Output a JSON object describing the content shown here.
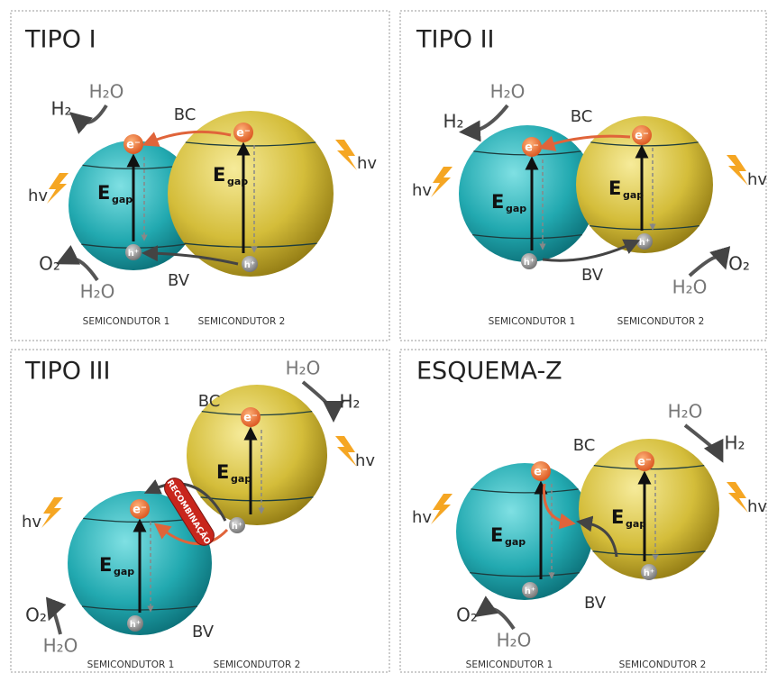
{
  "panels": [
    {
      "title": "TIPO I",
      "conduction_band": "BC",
      "valence_band": "BV",
      "reduction": {
        "reactant": "H₂O",
        "product": "H₂"
      },
      "oxidation": {
        "reactant": "H₂O",
        "product": "O₂"
      },
      "semiconductors": [
        {
          "name": "SEMICONDUTOR 1",
          "light": "hv",
          "electron": "e⁻",
          "hole": "h⁺",
          "gap": "E",
          "gap_subscript": "gap"
        },
        {
          "name": "SEMICONDUTOR 2",
          "light": "hv",
          "electron": "e⁻",
          "hole": "h⁺",
          "gap": "E",
          "gap_subscript": "gap"
        }
      ]
    },
    {
      "title": "TIPO II",
      "conduction_band": "BC",
      "valence_band": "BV",
      "reduction": {
        "reactant": "H₂O",
        "product": "H₂"
      },
      "oxidation": {
        "reactant": "H₂O",
        "product": "O₂"
      },
      "semiconductors": [
        {
          "name": "SEMICONDUTOR 1",
          "light": "hv",
          "electron": "e⁻",
          "hole": "h⁺",
          "gap": "E",
          "gap_subscript": "gap"
        },
        {
          "name": "SEMICONDUTOR 2",
          "light": "hv",
          "electron": "e⁻",
          "hole": "h⁺",
          "gap": "E",
          "gap_subscript": "gap"
        }
      ]
    },
    {
      "title": "TIPO III",
      "conduction_band": "BC",
      "valence_band": "BV",
      "recombination": "RECOMBINAÇÃO",
      "reduction": {
        "reactant": "H₂O",
        "product": "H₂"
      },
      "oxidation": {
        "reactant": "H₂O",
        "product": "O₂"
      },
      "semiconductors": [
        {
          "name": "SEMICONDUTOR 1",
          "light": "hv",
          "electron": "e⁻",
          "hole": "h⁺",
          "gap": "E",
          "gap_subscript": "gap"
        },
        {
          "name": "SEMICONDUTOR 2",
          "light": "hv",
          "electron": "e⁻",
          "hole": "h⁺",
          "gap": "E",
          "gap_subscript": "gap"
        }
      ]
    },
    {
      "title": "ESQUEMA-Z",
      "conduction_band": "BC",
      "valence_band": "BV",
      "reduction": {
        "reactant": "H₂O",
        "product": "H₂"
      },
      "oxidation": {
        "reactant": "H₂O",
        "product": "O₂"
      },
      "semiconductors": [
        {
          "name": "SEMICONDUTOR 1",
          "light": "hv",
          "electron": "e⁻",
          "hole": "h⁺",
          "gap": "E",
          "gap_subscript": "gap"
        },
        {
          "name": "SEMICONDUTOR 2",
          "light": "hv",
          "electron": "e⁻",
          "hole": "h⁺",
          "gap": "E",
          "gap_subscript": "gap"
        }
      ]
    }
  ]
}
